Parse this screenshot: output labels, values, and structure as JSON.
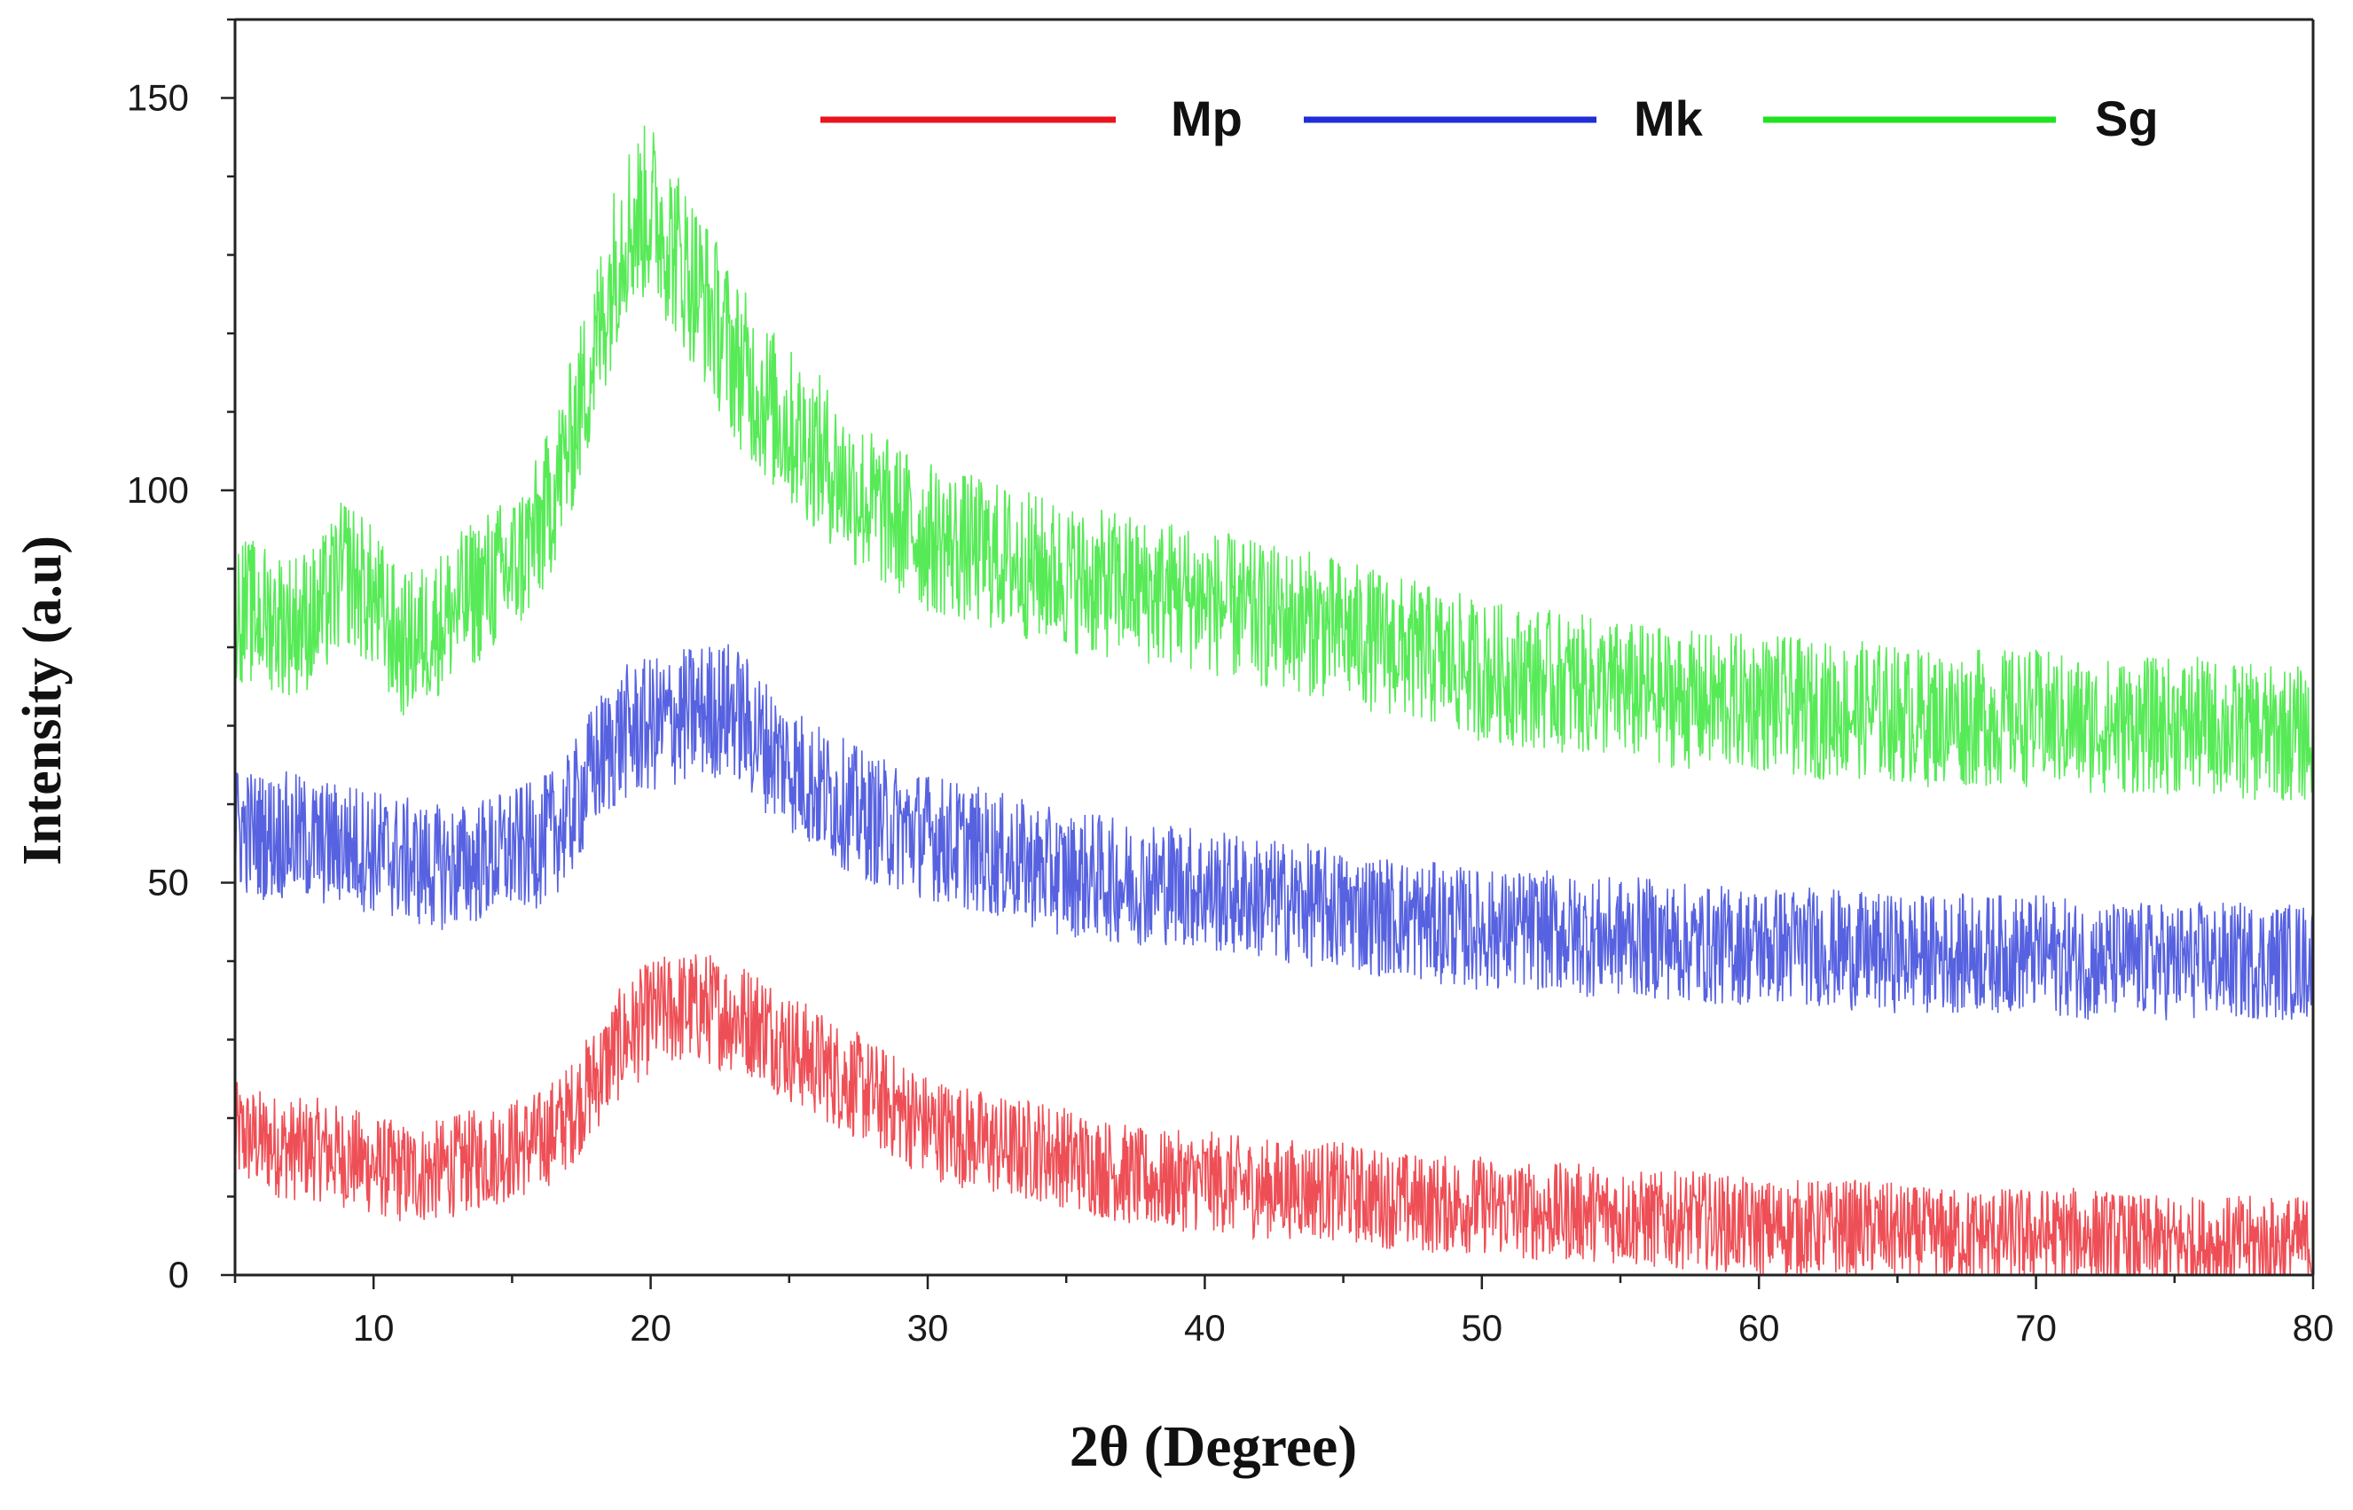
{
  "chart_data": {
    "type": "line",
    "title": "",
    "xlabel": "2θ (Degree)",
    "ylabel": "Intensity (a.u)",
    "xlim": [
      5,
      80
    ],
    "ylim": [
      0,
      160
    ],
    "x_ticks": [
      10,
      20,
      30,
      40,
      50,
      60,
      70,
      80
    ],
    "x_tick_labels": [
      "10",
      "20",
      "30",
      "40",
      "50",
      "60",
      "70",
      "80"
    ],
    "y_ticks": [
      0,
      50,
      100,
      150
    ],
    "y_tick_labels": [
      "0",
      "50",
      "100",
      "150"
    ],
    "grid": false,
    "legend_position": "top",
    "series": [
      {
        "name": "Mp",
        "color": "#e8141e",
        "x": [
          5,
          6,
          7,
          8,
          9,
          10,
          11,
          12,
          13,
          14,
          15,
          16,
          17,
          18,
          19,
          20,
          21,
          22,
          23,
          24,
          25,
          26,
          27,
          28,
          29,
          30,
          31,
          32,
          33,
          34,
          35,
          36,
          37,
          38,
          39,
          40,
          42,
          44,
          46,
          48,
          50,
          52,
          54,
          56,
          58,
          60,
          62,
          64,
          66,
          68,
          70,
          72,
          74,
          76,
          78,
          80
        ],
        "values": [
          18,
          17,
          16,
          16,
          15,
          14,
          13,
          13,
          14,
          15,
          16,
          17,
          20,
          25,
          30,
          33,
          34,
          34,
          33,
          32,
          29,
          27,
          25,
          23,
          21,
          19,
          18,
          17,
          16,
          16,
          15,
          14,
          13,
          12,
          12,
          12,
          11,
          11,
          10,
          9,
          9,
          8,
          8,
          7,
          7,
          6,
          6,
          6,
          5,
          5,
          5,
          5,
          4,
          4,
          4,
          4
        ]
      },
      {
        "name": "Mk",
        "color": "#1f2ed6",
        "x": [
          5,
          6,
          7,
          8,
          9,
          10,
          11,
          12,
          13,
          14,
          15,
          16,
          17,
          18,
          19,
          20,
          21,
          22,
          23,
          24,
          25,
          26,
          27,
          28,
          29,
          30,
          31,
          32,
          33,
          34,
          35,
          36,
          37,
          38,
          39,
          40,
          42,
          44,
          46,
          48,
          50,
          52,
          54,
          56,
          58,
          60,
          62,
          64,
          66,
          68,
          70,
          72,
          74,
          76,
          78,
          80
        ],
        "values": [
          57,
          56,
          56,
          55,
          55,
          54,
          53,
          52,
          52,
          53,
          54,
          55,
          58,
          65,
          69,
          70,
          71,
          72,
          72,
          68,
          65,
          62,
          60,
          58,
          57,
          56,
          55,
          54,
          53,
          52,
          51,
          51,
          50,
          50,
          50,
          49,
          48,
          47,
          46,
          45,
          44,
          44,
          43,
          43,
          42,
          42,
          42,
          41,
          41,
          41,
          41,
          40,
          40,
          40,
          40,
          40
        ]
      },
      {
        "name": "Sg",
        "color": "#1fe31f",
        "x": [
          5,
          6,
          7,
          8,
          9,
          10,
          11,
          12,
          13,
          14,
          15,
          16,
          17,
          18,
          19,
          20,
          21,
          22,
          23,
          24,
          25,
          26,
          27,
          28,
          29,
          30,
          31,
          32,
          33,
          34,
          35,
          36,
          37,
          38,
          39,
          40,
          42,
          44,
          46,
          48,
          50,
          52,
          54,
          56,
          58,
          60,
          62,
          64,
          66,
          68,
          70,
          72,
          74,
          76,
          78,
          80
        ],
        "values": [
          85,
          84,
          83,
          84,
          90,
          86,
          80,
          82,
          85,
          88,
          90,
          95,
          105,
          118,
          133,
          136,
          130,
          124,
          117,
          112,
          108,
          105,
          101,
          98,
          96,
          94,
          93,
          92,
          91,
          90,
          89,
          88,
          88,
          87,
          87,
          86,
          84,
          83,
          81,
          79,
          77,
          76,
          75,
          74,
          73,
          73,
          72,
          72,
          71,
          71,
          71,
          70,
          70,
          70,
          69,
          69
        ]
      }
    ]
  }
}
